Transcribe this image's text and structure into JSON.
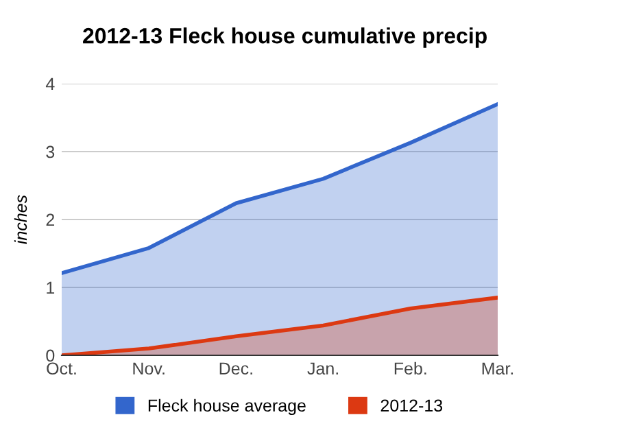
{
  "chart_data": {
    "type": "area",
    "title": "2012-13 Fleck house cumulative precip",
    "ylabel": "inches",
    "categories": [
      "Oct.",
      "Nov.",
      "Dec.",
      "Jan.",
      "Feb.",
      "Mar."
    ],
    "series": [
      {
        "name": "Fleck house average",
        "color": "#3366cc",
        "values": [
          1.21,
          1.58,
          2.24,
          2.6,
          3.13,
          3.7
        ]
      },
      {
        "name": "2012-13",
        "color": "#dc3912",
        "values": [
          0,
          0.1,
          0.28,
          0.44,
          0.69,
          0.85
        ]
      }
    ],
    "ylim": [
      0,
      4
    ],
    "yticks": [
      0,
      1,
      2,
      3,
      4
    ],
    "grid": "y",
    "legend": "bottom"
  }
}
